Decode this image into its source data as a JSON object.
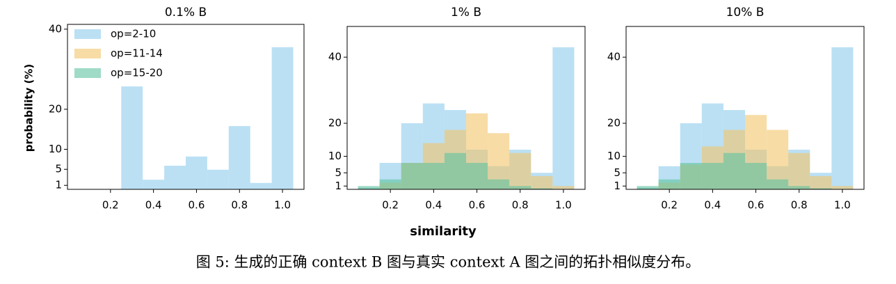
{
  "figure": {
    "xlabel": "similarity",
    "ylabel": "probability (%)",
    "caption": "图 5: 生成的正确 context B 图与真实 context A 图之间的拓扑相似度分布。"
  },
  "chart_data": [
    {
      "type": "histogram",
      "title": "0.1% B",
      "legend": "upper left",
      "bins": [
        0.05,
        0.15,
        0.25,
        0.35,
        0.45,
        0.55,
        0.65,
        0.75,
        0.85,
        0.95,
        1.05
      ],
      "series": [
        {
          "name": "op=2-10",
          "color": "#8ecbed",
          "values": [
            0,
            0,
            25.7,
            2.4,
            5.9,
            8.2,
            4.9,
            15.8,
            1.6,
            35.5
          ]
        },
        {
          "name": "op=11-14",
          "color": "#f2c46a",
          "values": [
            0,
            0,
            0,
            0,
            0,
            0,
            0,
            0,
            0,
            0
          ]
        },
        {
          "name": "op=15-20",
          "color": "#5fc3a0",
          "values": [
            0,
            0,
            0,
            0,
            0,
            0,
            0,
            0,
            0,
            0
          ]
        }
      ],
      "xlim": [
        0,
        1.1
      ],
      "ylim": [
        0,
        41.2
      ],
      "xticks": [
        0.2,
        0.4,
        0.6,
        0.8,
        {
          "value": 1.0,
          "label": "1.0"
        }
      ],
      "yticks": [
        1,
        5,
        10,
        20,
        40
      ]
    },
    {
      "type": "histogram",
      "title": "1% B",
      "bins": [
        0.05,
        0.15,
        0.25,
        0.35,
        0.45,
        0.55,
        0.65,
        0.75,
        0.85,
        0.95,
        1.05
      ],
      "series": [
        {
          "color": "#8ecbed",
          "values": [
            0.5,
            8,
            20,
            26,
            24,
            12,
            7,
            12,
            5,
            43
          ]
        },
        {
          "color": "#f2c46a",
          "values": [
            0.2,
            2,
            8,
            14,
            18,
            23,
            17,
            11,
            4,
            1
          ]
        },
        {
          "color": "#5fc3a0",
          "values": [
            1,
            3,
            8,
            8,
            11,
            8,
            3,
            1,
            0.3,
            0.1
          ]
        }
      ],
      "xlim": [
        0,
        1.1
      ],
      "ylim": [
        0,
        49.3
      ],
      "xticks": [
        0.2,
        0.4,
        0.6,
        0.8,
        {
          "value": 1.0,
          "label": "1.0"
        }
      ],
      "yticks": [
        1,
        5,
        10,
        20,
        40
      ]
    },
    {
      "type": "histogram",
      "title": "10% B",
      "bins": [
        0.05,
        0.15,
        0.25,
        0.35,
        0.45,
        0.55,
        0.65,
        0.75,
        0.85,
        0.95,
        1.05
      ],
      "series": [
        {
          "color": "#8ecbed",
          "values": [
            0.5,
            7,
            20,
            26,
            24,
            12,
            7,
            12,
            5,
            43
          ]
        },
        {
          "color": "#f2c46a",
          "values": [
            0.2,
            2,
            7.5,
            13,
            18,
            22.5,
            18,
            11,
            4,
            1
          ]
        },
        {
          "color": "#5fc3a0",
          "values": [
            1,
            3,
            8,
            8,
            11,
            8,
            3,
            1,
            0.3,
            0.1
          ]
        }
      ],
      "xlim": [
        0,
        1.1
      ],
      "ylim": [
        0,
        49.3
      ],
      "xticks": [
        0.2,
        0.4,
        0.6,
        0.8,
        {
          "value": 1.0,
          "label": "1.0"
        }
      ],
      "yticks": [
        1,
        5,
        10,
        20,
        40
      ]
    }
  ]
}
